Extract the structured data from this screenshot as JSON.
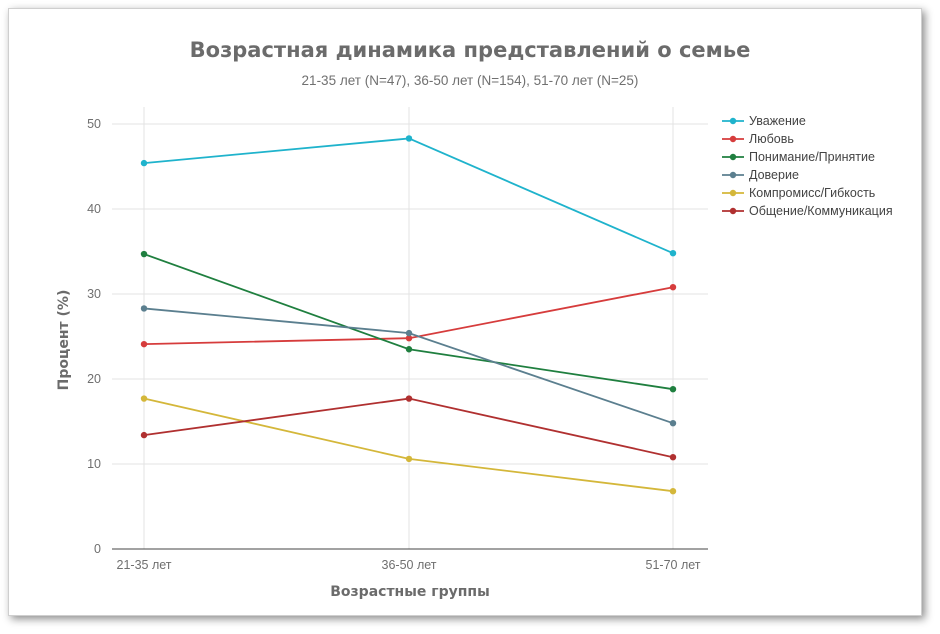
{
  "chart_data": {
    "type": "line",
    "title": "Возрастная динамика представлений о семье",
    "subtitle": "21-35 лет (N=47), 36-50 лет (N=154), 51-70 лет (N=25)",
    "xlabel": "Возрастные группы",
    "ylabel": "Процент (%)",
    "categories": [
      "21-35 лет",
      "36-50 лет",
      "51-70 лет"
    ],
    "ylim": [
      0,
      52
    ],
    "yticks": [
      0,
      10,
      20,
      30,
      40,
      50
    ],
    "grid": true,
    "legend_position": "right",
    "series": [
      {
        "name": "Уважение",
        "color": "#1fb3cc",
        "values": [
          45.4,
          48.3,
          34.8
        ]
      },
      {
        "name": "Любовь",
        "color": "#d63c3c",
        "values": [
          24.1,
          24.8,
          30.8
        ]
      },
      {
        "name": "Понимание/Принятие",
        "color": "#1f7f3f",
        "values": [
          34.7,
          23.5,
          18.8
        ]
      },
      {
        "name": "Доверие",
        "color": "#5b7f8f",
        "values": [
          28.3,
          25.4,
          14.8
        ]
      },
      {
        "name": "Компромисс/Гибкость",
        "color": "#d4b73a",
        "values": [
          17.7,
          10.6,
          6.8
        ]
      },
      {
        "name": "Общение/Коммуникация",
        "color": "#b03030",
        "values": [
          13.4,
          17.7,
          10.8
        ]
      }
    ]
  }
}
